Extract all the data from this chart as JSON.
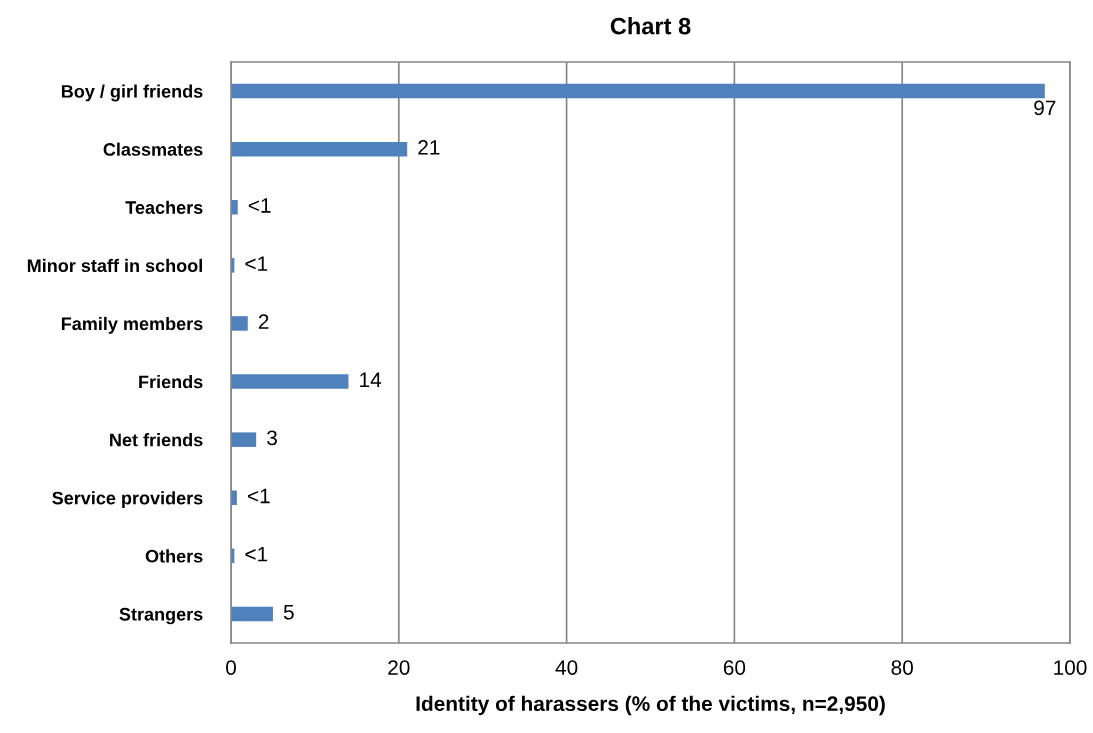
{
  "chart_data": {
    "type": "bar",
    "orientation": "horizontal",
    "title": "Chart 8",
    "xlabel": "Identity of harassers (% of the victims, n=2,950)",
    "categories": [
      "Boy / girl friends",
      "Classmates",
      "Teachers",
      "Minor staff in school",
      "Family members",
      "Friends",
      "Net friends",
      "Service providers",
      "Others",
      "Strangers"
    ],
    "values": [
      97,
      21,
      0.8,
      0.4,
      2,
      14,
      3,
      0.7,
      0.4,
      5
    ],
    "value_labels": [
      "97",
      "21",
      "<1",
      "<1",
      "2",
      "14",
      "3",
      "<1",
      "<1",
      "5"
    ],
    "color": "#4f81bd",
    "xlim": [
      0,
      100
    ],
    "xticks": [
      0,
      20,
      40,
      60,
      80,
      100
    ],
    "grid": "x"
  }
}
